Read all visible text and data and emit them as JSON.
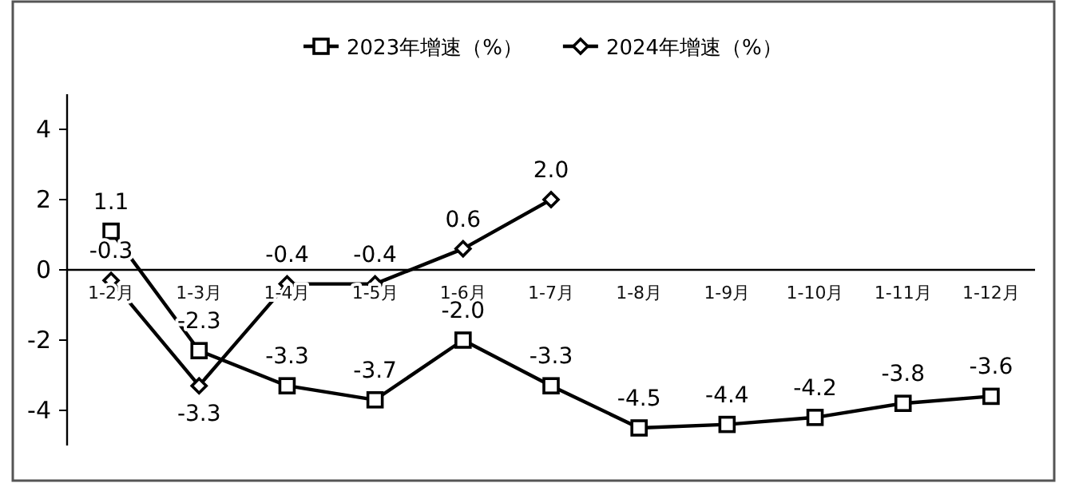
{
  "chart_data": {
    "type": "line",
    "categories": [
      "1-2月",
      "1-3月",
      "1-4月",
      "1-5月",
      "1-6月",
      "1-7月",
      "1-8月",
      "1-9月",
      "1-10月",
      "1-11月",
      "1-12月"
    ],
    "series": [
      {
        "name": "2023年增速（%）",
        "color": "#000000",
        "marker": "square",
        "values": [
          1.1,
          -2.3,
          -3.3,
          -3.7,
          -2.0,
          -3.3,
          -4.5,
          -4.4,
          -4.2,
          -3.8,
          -3.6
        ],
        "value_labels": [
          "1.1",
          "-2.3",
          "-3.3",
          "-3.7",
          "-2.0",
          "-3.3",
          "-4.5",
          "-4.4",
          "-4.2",
          "-3.8",
          "-3.6"
        ]
      },
      {
        "name": "2024年增速（%）",
        "color": "#000000",
        "marker": "diamond",
        "values": [
          -0.3,
          -3.3,
          -0.4,
          -0.4,
          0.6,
          2.0,
          null,
          null,
          null,
          null,
          null
        ],
        "value_labels": [
          "-0.3",
          "-3.3",
          "-0.4",
          "-0.4",
          "0.6",
          "2.0",
          null,
          null,
          null,
          null,
          null
        ]
      }
    ],
    "ylim": [
      -5,
      5
    ],
    "yticks": [
      -4,
      -2,
      0,
      2,
      4
    ],
    "grid": false,
    "legend": "top",
    "line_style": "solid"
  }
}
